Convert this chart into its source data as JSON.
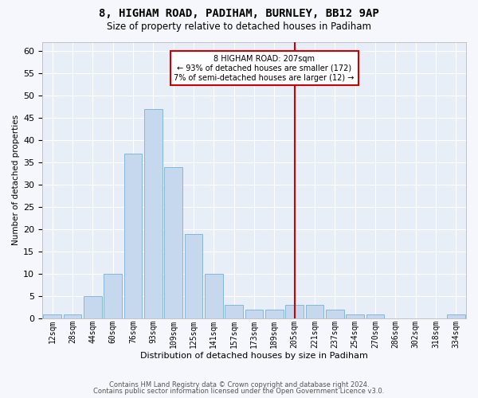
{
  "title1": "8, HIGHAM ROAD, PADIHAM, BURNLEY, BB12 9AP",
  "title2": "Size of property relative to detached houses in Padiham",
  "xlabel": "Distribution of detached houses by size in Padiham",
  "ylabel": "Number of detached properties",
  "footer1": "Contains HM Land Registry data © Crown copyright and database right 2024.",
  "footer2": "Contains public sector information licensed under the Open Government Licence v3.0.",
  "bar_values": [
    1,
    1,
    5,
    10,
    37,
    47,
    34,
    19,
    10,
    3,
    2,
    2,
    3,
    3,
    2,
    1,
    1,
    0,
    0,
    0,
    1
  ],
  "bar_labels": [
    "12sqm",
    "28sqm",
    "44sqm",
    "60sqm",
    "76sqm",
    "93sqm",
    "109sqm",
    "125sqm",
    "141sqm",
    "157sqm",
    "173sqm",
    "189sqm",
    "205sqm",
    "221sqm",
    "237sqm",
    "254sqm",
    "270sqm",
    "286sqm",
    "302sqm",
    "318sqm",
    "334sqm"
  ],
  "bar_color": "#c5d8ee",
  "bar_edge_color": "#7bafd4",
  "bg_color": "#e8eef8",
  "fig_bg_color": "#f5f7fc",
  "grid_color": "#ffffff",
  "ylim_max": 62,
  "yticks": [
    0,
    5,
    10,
    15,
    20,
    25,
    30,
    35,
    40,
    45,
    50,
    55,
    60
  ],
  "vline_index": 12,
  "vline_color": "#cc0000",
  "annot_text": "8 HIGHAM ROAD: 207sqm\n← 93% of detached houses are smaller (172)\n7% of semi-detached houses are larger (12) →",
  "annot_box_edge_color": "#cc0000",
  "annot_box_face_color": "#ffffff"
}
